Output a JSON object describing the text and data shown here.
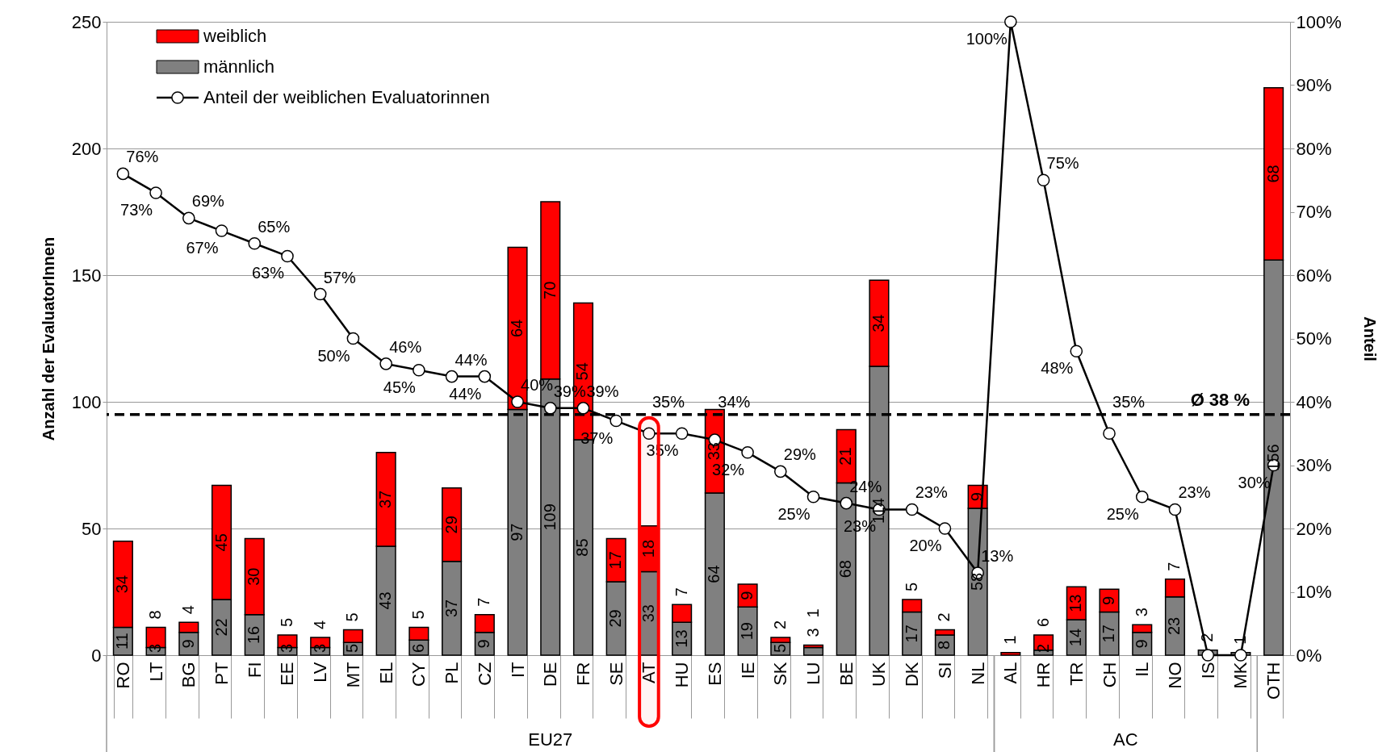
{
  "chart_data": {
    "type": "bar",
    "stacked": true,
    "ylabel": "Anzahl der EvaluatorInnen",
    "y2label": "Anteil",
    "categories": [
      "RO",
      "LT",
      "BG",
      "PT",
      "FI",
      "EE",
      "LV",
      "MT",
      "EL",
      "CY",
      "PL",
      "CZ",
      "IT",
      "DE",
      "FR",
      "SE",
      "AT",
      "HU",
      "ES",
      "IE",
      "SK",
      "LU",
      "BE",
      "UK",
      "DK",
      "SI",
      "NL",
      "AL",
      "HR",
      "TR",
      "CH",
      "IL",
      "NO",
      "IS",
      "MK",
      "OTH"
    ],
    "series": [
      {
        "name": "männlich",
        "color": "#808080",
        "values": [
          11,
          3,
          9,
          22,
          16,
          3,
          3,
          5,
          43,
          6,
          37,
          9,
          97,
          109,
          85,
          29,
          33,
          13,
          64,
          19,
          5,
          3,
          68,
          114,
          17,
          8,
          58,
          0,
          2,
          14,
          17,
          9,
          23,
          2,
          1,
          156
        ],
        "value_labels": [
          "11",
          "3",
          "9",
          "22",
          "16",
          "3",
          "3",
          "5",
          "43",
          "6",
          "37",
          "9",
          "97",
          "109",
          "85",
          "29",
          "33",
          "13",
          "64",
          "19",
          "5",
          "3",
          "68",
          "114",
          "17",
          "8",
          "58",
          null,
          "2",
          "14",
          "17",
          "9",
          "23",
          "2",
          "1",
          "156"
        ]
      },
      {
        "name": "weiblich",
        "color": "#ff0000",
        "values": [
          34,
          8,
          4,
          45,
          30,
          5,
          4,
          5,
          37,
          5,
          29,
          7,
          64,
          70,
          54,
          17,
          18,
          7,
          33,
          9,
          2,
          1,
          21,
          34,
          5,
          2,
          9,
          1,
          6,
          13,
          9,
          3,
          7,
          0,
          0,
          68
        ],
        "value_labels": [
          "34",
          "8",
          "4",
          "45",
          "30",
          "5",
          "4",
          "5",
          "37",
          "5",
          "29",
          "7",
          "64",
          "70",
          "54",
          "17",
          "18",
          "7",
          "33",
          "9",
          "2",
          "1",
          "21",
          "34",
          "5",
          "2",
          "9",
          "1",
          "6",
          "13",
          "9",
          "3",
          "7",
          null,
          null,
          "68"
        ]
      },
      {
        "name": "Anteil der weiblichen Evaluatorinnen",
        "type": "line",
        "axis": "y2",
        "color": "#000000",
        "values": [
          76,
          73,
          69,
          67,
          65,
          63,
          57,
          50,
          46,
          45,
          44,
          44,
          40,
          39,
          39,
          37,
          35,
          35,
          34,
          32,
          29,
          25,
          24,
          23,
          23,
          20,
          13,
          100,
          75,
          48,
          35,
          25,
          23,
          0,
          0,
          30
        ],
        "value_labels": [
          "76%",
          "73%",
          "69%",
          "67%",
          "65%",
          "63%",
          "57%",
          "50%",
          "46%",
          "45%",
          "44%",
          "44%",
          "40%",
          "39%",
          "39%",
          "37%",
          "35%",
          "35%",
          "34%",
          "32%",
          "29%",
          "25%",
          "24%",
          "23%",
          "23%",
          "20%",
          "13%",
          "100%",
          "75%",
          "48%",
          "35%",
          "25%",
          "23%",
          null,
          null,
          "30%"
        ]
      }
    ],
    "ylim": [
      0,
      250
    ],
    "yticks": [
      0,
      50,
      100,
      150,
      200,
      250
    ],
    "y2lim": [
      0,
      100
    ],
    "y2ticks": [
      {
        "value": 0,
        "label": "0%"
      },
      {
        "value": 10,
        "label": "10%"
      },
      {
        "value": 20,
        "label": "20%"
      },
      {
        "value": 30,
        "label": "30%"
      },
      {
        "value": 40,
        "label": "40%"
      },
      {
        "value": 50,
        "label": "50%"
      },
      {
        "value": 60,
        "label": "60%"
      },
      {
        "value": 70,
        "label": "70%"
      },
      {
        "value": 80,
        "label": "80%"
      },
      {
        "value": 90,
        "label": "90%"
      },
      {
        "value": 100,
        "label": "100%"
      }
    ],
    "ref_lines": [
      {
        "axis": "y2",
        "value": 38,
        "label": "Ø 38 %",
        "color": "#000000",
        "line_style": "dashed"
      }
    ],
    "bands": [
      {
        "axis": "x",
        "from": "AT",
        "to": "AT",
        "color": "#ff0000"
      }
    ],
    "annotations": [
      "EU27",
      "AC"
    ],
    "grid": "y",
    "legend": "top left",
    "marker": "circle",
    "line_style": "solid"
  }
}
